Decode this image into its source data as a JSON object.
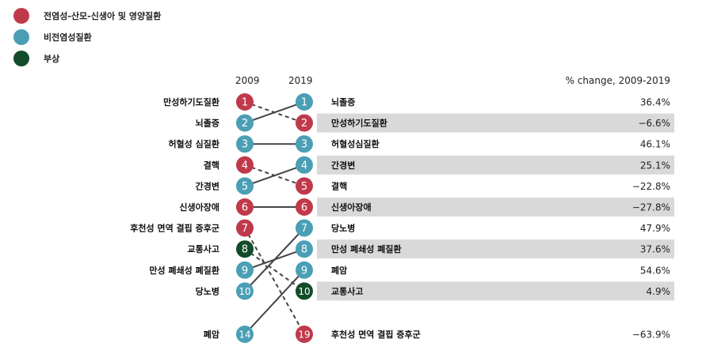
{
  "legend": [
    {
      "label": "전염성-산모-신생아  및 영양질환",
      "color": "#c0394b"
    },
    {
      "label": "비전염성질환",
      "color": "#4a9fb5"
    },
    {
      "label": "부상",
      "color": "#134c2a"
    }
  ],
  "colors": {
    "communicable": "#c0394b",
    "noncommunicable": "#4a9fb5",
    "injury": "#134c2a",
    "highlight_band": "#d9d9d9",
    "line": "#444444"
  },
  "headers": {
    "year_left": "2009",
    "year_right": "2019",
    "pct_change": "% change, 2009-2019"
  },
  "chart_data": {
    "type": "slope",
    "title": "",
    "left_year": "2009",
    "right_year": "2019",
    "left": [
      {
        "rank": 1,
        "label": "만성하기도질환",
        "group": "communicable"
      },
      {
        "rank": 2,
        "label": "뇌졸증",
        "group": "noncommunicable"
      },
      {
        "rank": 3,
        "label": "허혈성 심질환",
        "group": "noncommunicable"
      },
      {
        "rank": 4,
        "label": "결핵",
        "group": "communicable"
      },
      {
        "rank": 5,
        "label": "간경변",
        "group": "noncommunicable"
      },
      {
        "rank": 6,
        "label": "신생아장애",
        "group": "communicable"
      },
      {
        "rank": 7,
        "label": "후천성 면역 결핍 증후군",
        "group": "communicable"
      },
      {
        "rank": 8,
        "label": "교통사고",
        "group": "injury"
      },
      {
        "rank": 9,
        "label": "만성 폐쇄성 폐질환",
        "group": "noncommunicable"
      },
      {
        "rank": 10,
        "label": "당노병",
        "group": "noncommunicable"
      },
      {
        "rank": 14,
        "label": "폐암",
        "group": "noncommunicable"
      }
    ],
    "right": [
      {
        "rank": 1,
        "label": "뇌졸증",
        "group": "noncommunicable",
        "change": "36.4%"
      },
      {
        "rank": 2,
        "label": "만성하기도질환",
        "group": "communicable",
        "change": "−6.6%"
      },
      {
        "rank": 3,
        "label": "허혈성심질환",
        "group": "noncommunicable",
        "change": "46.1%"
      },
      {
        "rank": 4,
        "label": "간경변",
        "group": "noncommunicable",
        "change": "25.1%"
      },
      {
        "rank": 5,
        "label": "결핵",
        "group": "communicable",
        "change": "−22.8%"
      },
      {
        "rank": 6,
        "label": "신생아장애",
        "group": "communicable",
        "change": "−27.8%"
      },
      {
        "rank": 7,
        "label": "당노병",
        "group": "noncommunicable",
        "change": "47.9%"
      },
      {
        "rank": 8,
        "label": "만성 폐쇄성 폐질환",
        "group": "noncommunicable",
        "change": "37.6%"
      },
      {
        "rank": 9,
        "label": "폐암",
        "group": "noncommunicable",
        "change": "54.6%"
      },
      {
        "rank": 10,
        "label": "교통사고",
        "group": "injury",
        "change": "4.9%"
      },
      {
        "rank": 19,
        "label": "후천성 면역 결핍 증후군",
        "group": "communicable",
        "change": "−63.9%"
      }
    ],
    "links": [
      {
        "from": 1,
        "to": 2,
        "dashed": true
      },
      {
        "from": 2,
        "to": 1,
        "dashed": false
      },
      {
        "from": 3,
        "to": 3,
        "dashed": false
      },
      {
        "from": 4,
        "to": 5,
        "dashed": true
      },
      {
        "from": 5,
        "to": 4,
        "dashed": false
      },
      {
        "from": 6,
        "to": 6,
        "dashed": false
      },
      {
        "from": 7,
        "to": 19,
        "dashed": true
      },
      {
        "from": 8,
        "to": 10,
        "dashed": true
      },
      {
        "from": 9,
        "to": 8,
        "dashed": false
      },
      {
        "from": 10,
        "to": 7,
        "dashed": false
      },
      {
        "from": 14,
        "to": 9,
        "dashed": false
      }
    ],
    "highlighted_right_ranks": [
      2,
      4,
      6,
      8,
      10
    ]
  }
}
